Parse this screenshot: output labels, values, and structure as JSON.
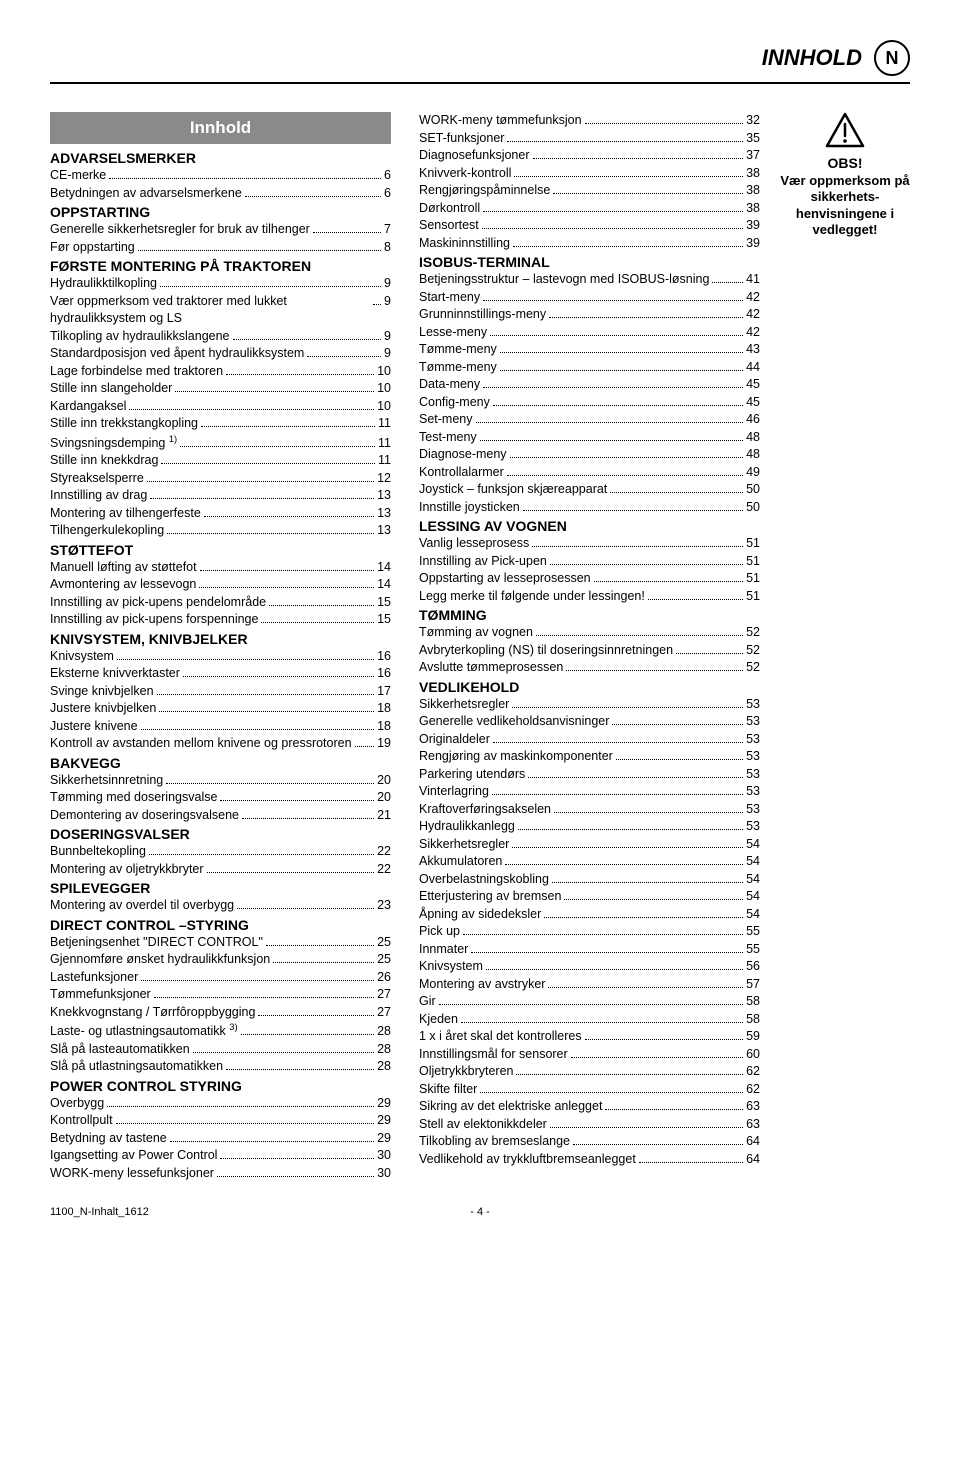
{
  "header": {
    "title": "INNHOLD",
    "lang_badge": "N"
  },
  "toc_title": "Innhold",
  "sidebar": {
    "obs": "OBS!",
    "note": "Vær oppmerksom på sikkerhets-henvisningene i vedlegget!"
  },
  "footer": {
    "doc_ref": "1100_N-Inhalt_1612",
    "page_number": "- 4 -"
  },
  "left_sections": [
    {
      "heading": "ADVARSELSMERKER",
      "items": [
        {
          "label": "CE-merke",
          "page": "6"
        },
        {
          "label": "Betydningen av advarselsmerkene",
          "page": "6"
        }
      ]
    },
    {
      "heading": "OPPSTARTING",
      "items": [
        {
          "label": "Generelle sikkerhetsregler for bruk av tilhenger",
          "page": "7"
        },
        {
          "label": "Før oppstarting",
          "page": "8"
        }
      ]
    },
    {
      "heading": "FØRSTE MONTERING PÅ TRAKTOREN",
      "items": [
        {
          "label": "Hydraulikktilkopling",
          "page": "9"
        },
        {
          "label": "Vær oppmerksom ved traktorer med lukket hydraulikksystem og LS",
          "page": "9"
        },
        {
          "label": "Tilkopling av hydraulikkslangene",
          "page": "9"
        },
        {
          "label": "Standardposisjon ved åpent hydraulikksystem",
          "page": "9"
        },
        {
          "label": "Lage forbindelse med traktoren",
          "page": "10"
        },
        {
          "label": "Stille inn slangeholder",
          "page": "10"
        },
        {
          "label": "Kardangaksel",
          "page": "10"
        },
        {
          "label": "Stille inn trekkstangkopling",
          "page": "11"
        },
        {
          "label": "Svingsningsdemping <sup>1)</sup>",
          "page": "11"
        },
        {
          "label": "Stille inn knekkdrag",
          "page": "11"
        },
        {
          "label": "Styreakselsperre",
          "page": "12"
        },
        {
          "label": "Innstilling av drag",
          "page": "13"
        },
        {
          "label": "Montering av tilhengerfeste",
          "page": "13"
        },
        {
          "label": "Tilhengerkulekopling",
          "page": "13"
        }
      ]
    },
    {
      "heading": "STØTTEFOT",
      "items": [
        {
          "label": "Manuell løfting av støttefot",
          "page": "14"
        },
        {
          "label": "Avmontering av lessevogn",
          "page": "14"
        },
        {
          "label": "Innstilling av pick-upens pendelområde",
          "page": "15"
        },
        {
          "label": "Innstilling av pick-upens forspenninge",
          "page": "15"
        }
      ]
    },
    {
      "heading": "KNIVSYSTEM, KNIVBJELKER",
      "items": [
        {
          "label": "Knivsystem",
          "page": "16"
        },
        {
          "label": "Eksterne knivverktaster",
          "page": "16"
        },
        {
          "label": "Svinge knivbjelken",
          "page": "17"
        },
        {
          "label": "Justere knivbjelken",
          "page": "18"
        },
        {
          "label": "Justere knivene",
          "page": "18"
        },
        {
          "label": "Kontroll av avstanden mellom knivene og pressrotoren",
          "page": "19"
        }
      ]
    },
    {
      "heading": "BAKVEGG",
      "items": [
        {
          "label": "Sikkerhetsinnretning",
          "page": "20"
        },
        {
          "label": "Tømming med doseringsvalse",
          "page": "20"
        },
        {
          "label": "Demontering av doseringsvalsene",
          "page": "21"
        }
      ]
    },
    {
      "heading": "DOSERINGSVALSER",
      "items": [
        {
          "label": "Bunnbeltekopling",
          "page": "22"
        },
        {
          "label": "Montering av oljetrykkbryter",
          "page": "22"
        }
      ]
    },
    {
      "heading": "SPILEVEGGER",
      "items": [
        {
          "label": "Montering av overdel til overbygg",
          "page": "23"
        }
      ]
    },
    {
      "heading": "DIRECT CONTROL –STYRING",
      "items": [
        {
          "label": "Betjeningsenhet \"DIRECT CONTROL\"",
          "page": "25"
        },
        {
          "label": "Gjennomføre ønsket hydraulikkfunksjon",
          "page": "25"
        },
        {
          "label": "Lastefunksjoner",
          "page": "26"
        },
        {
          "label": "Tømmefunksjoner",
          "page": "27"
        },
        {
          "label": "Knekkvognstang / Tørrfôroppbygging",
          "page": "27"
        },
        {
          "label": "Laste- og utlastningsautomatikk <sup>3)</sup>",
          "page": "28"
        },
        {
          "label": "Slå på lasteautomatikken",
          "page": "28"
        },
        {
          "label": "Slå på utlastningsautomatikken",
          "page": "28"
        }
      ]
    },
    {
      "heading": "POWER CONTROL STYRING",
      "items": [
        {
          "label": "Overbygg",
          "page": "29"
        },
        {
          "label": "Kontrollpult",
          "page": "29"
        },
        {
          "label": "Betydning av tastene",
          "page": "29"
        },
        {
          "label": "Igangsetting av Power Control",
          "page": "30"
        },
        {
          "label": "WORK-meny lessefunksjoner",
          "page": "30"
        }
      ]
    }
  ],
  "right_sections": [
    {
      "heading": null,
      "items": [
        {
          "label": "WORK-meny tømmefunksjon",
          "page": "32"
        },
        {
          "label": "SET-funksjoner",
          "page": "35"
        },
        {
          "label": "Diagnosefunksjoner",
          "page": "37"
        },
        {
          "label": "Knivverk-kontroll",
          "page": "38"
        },
        {
          "label": "Rengjøringspåminnelse",
          "page": "38"
        },
        {
          "label": "Dørkontroll",
          "page": "38"
        },
        {
          "label": "Sensortest",
          "page": "39"
        },
        {
          "label": "Maskininnstilling",
          "page": "39"
        }
      ]
    },
    {
      "heading": "ISOBUS-TERMINAL",
      "items": [
        {
          "label": "Betjeningsstruktur – lastevogn med ISOBUS-løsning",
          "page": "41"
        },
        {
          "label": "Start-meny",
          "page": "42"
        },
        {
          "label": "Grunninnstillings-meny",
          "page": "42"
        },
        {
          "label": "Lesse-meny",
          "page": "42"
        },
        {
          "label": "Tømme-meny",
          "page": "43"
        },
        {
          "label": "Tømme-meny",
          "page": "44"
        },
        {
          "label": "Data-meny",
          "page": "45"
        },
        {
          "label": "Config-meny",
          "page": "45"
        },
        {
          "label": "Set-meny",
          "page": "46"
        },
        {
          "label": "Test-meny",
          "page": "48"
        },
        {
          "label": "Diagnose-meny",
          "page": "48"
        },
        {
          "label": "Kontrollalarmer",
          "page": "49"
        },
        {
          "label": "Joystick – funksjon skjæreapparat",
          "page": "50"
        },
        {
          "label": "Innstille joysticken",
          "page": "50"
        }
      ]
    },
    {
      "heading": "LESSING AV VOGNEN",
      "items": [
        {
          "label": "Vanlig lesseprosess",
          "page": "51"
        },
        {
          "label": "Innstilling av Pick-upen",
          "page": "51"
        },
        {
          "label": "Oppstarting av lesseprosessen",
          "page": "51"
        },
        {
          "label": "Legg merke til følgende under lessingen!",
          "page": "51"
        }
      ]
    },
    {
      "heading": "TØMMING",
      "items": [
        {
          "label": "Tømming av vognen",
          "page": "52"
        },
        {
          "label": "Avbryterkopling (NS) til doseringsinnretningen",
          "page": "52"
        },
        {
          "label": "Avslutte tømmeprosessen",
          "page": "52"
        }
      ]
    },
    {
      "heading": "VEDLIKEHOLD",
      "items": [
        {
          "label": "Sikkerhetsregler",
          "page": "53"
        },
        {
          "label": "Generelle vedlikeholdsanvisninger",
          "page": "53"
        },
        {
          "label": "Originaldeler",
          "page": "53"
        },
        {
          "label": "Rengjøring av maskinkomponenter",
          "page": "53"
        },
        {
          "label": "Parkering utendørs",
          "page": "53"
        },
        {
          "label": "Vinterlagring",
          "page": "53"
        },
        {
          "label": "Kraftoverføringsakselen",
          "page": "53"
        },
        {
          "label": "Hydraulikkanlegg",
          "page": "53"
        },
        {
          "label": "Sikkerhetsregler",
          "page": "54"
        },
        {
          "label": "Akkumulatoren",
          "page": "54"
        },
        {
          "label": "Overbelastningskobling",
          "page": "54"
        },
        {
          "label": "Etterjustering av bremsen",
          "page": "54"
        },
        {
          "label": "Åpning av sidedeksler",
          "page": "54"
        },
        {
          "label": "Pick up",
          "page": "55"
        },
        {
          "label": "Innmater",
          "page": "55"
        },
        {
          "label": "Knivsystem",
          "page": "56"
        },
        {
          "label": "Montering av avstryker",
          "page": "57"
        },
        {
          "label": "Gir",
          "page": "58"
        },
        {
          "label": "Kjeden",
          "page": "58"
        },
        {
          "label": "1 x i året skal det kontrolleres",
          "page": "59"
        },
        {
          "label": "Innstillingsmål for sensorer",
          "page": "60"
        },
        {
          "label": "Oljetrykkbryteren",
          "page": "62"
        },
        {
          "label": "Skifte filter",
          "page": "62"
        },
        {
          "label": "Sikring av det elektriske anlegget",
          "page": "63"
        },
        {
          "label": "Stell av elektonikkdeler",
          "page": "63"
        },
        {
          "label": "Tilkobling av bremseslange",
          "page": "64"
        },
        {
          "label": "Vedlikehold av trykkluftbremseanlegget",
          "page": "64"
        }
      ]
    }
  ]
}
